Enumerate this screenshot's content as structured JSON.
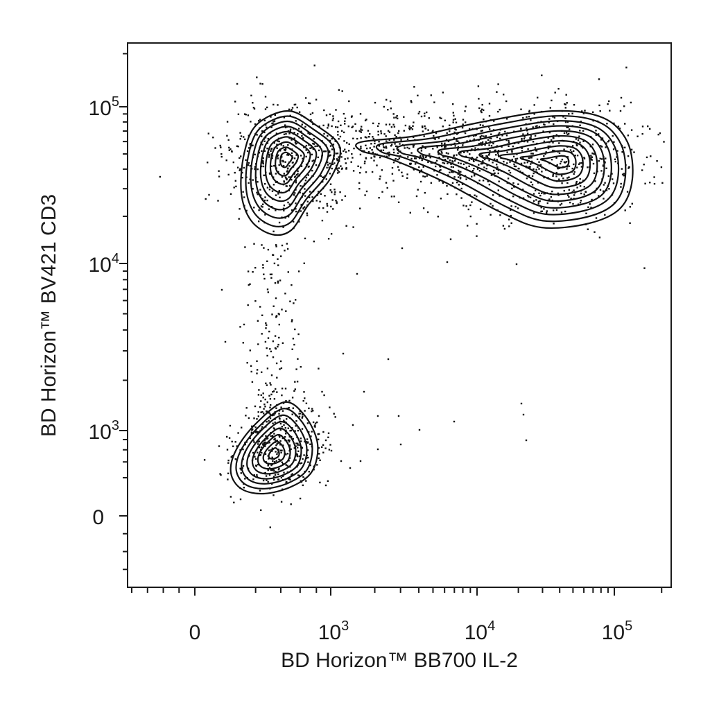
{
  "chart_data": {
    "type": "scatter",
    "subtype": "flow-cytometry-contour-with-outliers",
    "x_axis": {
      "label": "BD Horizon™ BB700 IL-2",
      "scale": "biexponential",
      "range": [
        -800,
        230000
      ],
      "ticks": [
        {
          "value": 0,
          "base": "0",
          "exp": ""
        },
        {
          "value": 1000,
          "base": "10",
          "exp": "3"
        },
        {
          "value": 10000,
          "base": "10",
          "exp": "4"
        },
        {
          "value": 100000,
          "base": "10",
          "exp": "5"
        }
      ]
    },
    "y_axis": {
      "label": "BD Horizon™ BV421 CD3",
      "scale": "biexponential",
      "range": [
        -400,
        230000
      ],
      "ticks": [
        {
          "value": 0,
          "base": "0",
          "exp": ""
        },
        {
          "value": 1000,
          "base": "10",
          "exp": "3"
        },
        {
          "value": 10000,
          "base": "10",
          "exp": "4"
        },
        {
          "value": 100000,
          "base": "10",
          "exp": "5"
        }
      ]
    },
    "grid": false,
    "legend": "none",
    "populations": [
      {
        "center_x": 450,
        "center_y": 45000,
        "contour_levels": 9
      },
      {
        "center_x": 35000,
        "center_y": 45000,
        "contour_levels": 10
      },
      {
        "center_x": 380,
        "center_y": 700,
        "contour_levels": 8
      }
    ]
  }
}
